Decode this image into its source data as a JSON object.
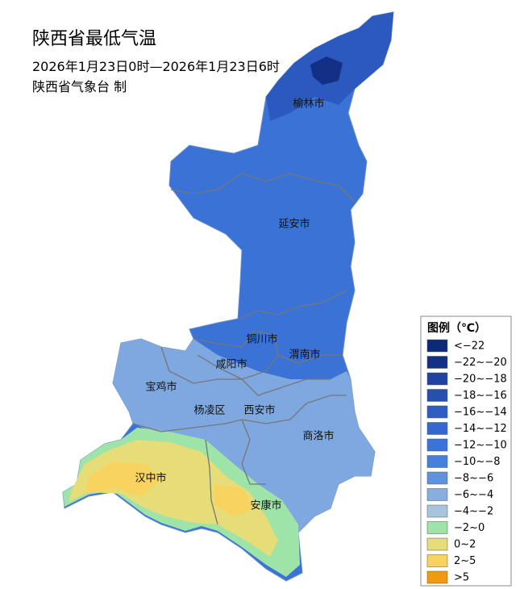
{
  "title": "陕西省最低气温",
  "subtitle": "2026年1月23日0时—2026年1月23日6时",
  "producer": "陕西省气象台 制",
  "cities": [
    "榆林市",
    "延安市",
    "铜川市",
    "渭南市",
    "咸阳市",
    "宝鸡市",
    "杨凌区",
    "西安市",
    "商洛市",
    "汉中市",
    "安康市"
  ],
  "legend": {
    "title": "图例（℃）",
    "items": [
      {
        "label": "<−22",
        "color": "#0b2a7a"
      },
      {
        "label": "−22~−20",
        "color": "#142f86"
      },
      {
        "label": "−20~−18",
        "color": "#1e43a0"
      },
      {
        "label": "−18~−16",
        "color": "#2650b0"
      },
      {
        "label": "−16~−14",
        "color": "#2d5dc4"
      },
      {
        "label": "−14~−12",
        "color": "#3268d0"
      },
      {
        "label": "−12~−10",
        "color": "#3a74da"
      },
      {
        "label": "−10~−8",
        "color": "#4680de"
      },
      {
        "label": "−8~−6",
        "color": "#5e93e0"
      },
      {
        "label": "−6~−4",
        "color": "#86aee0"
      },
      {
        "label": "−4~−2",
        "color": "#a7c6de"
      },
      {
        "label": "−2~0",
        "color": "#9ee3a8"
      },
      {
        "label": "0~2",
        "color": "#e6dc78"
      },
      {
        "label": "2~5",
        "color": "#f9d35f"
      },
      {
        "label": ">5",
        "color": "#f19a10"
      }
    ]
  }
}
